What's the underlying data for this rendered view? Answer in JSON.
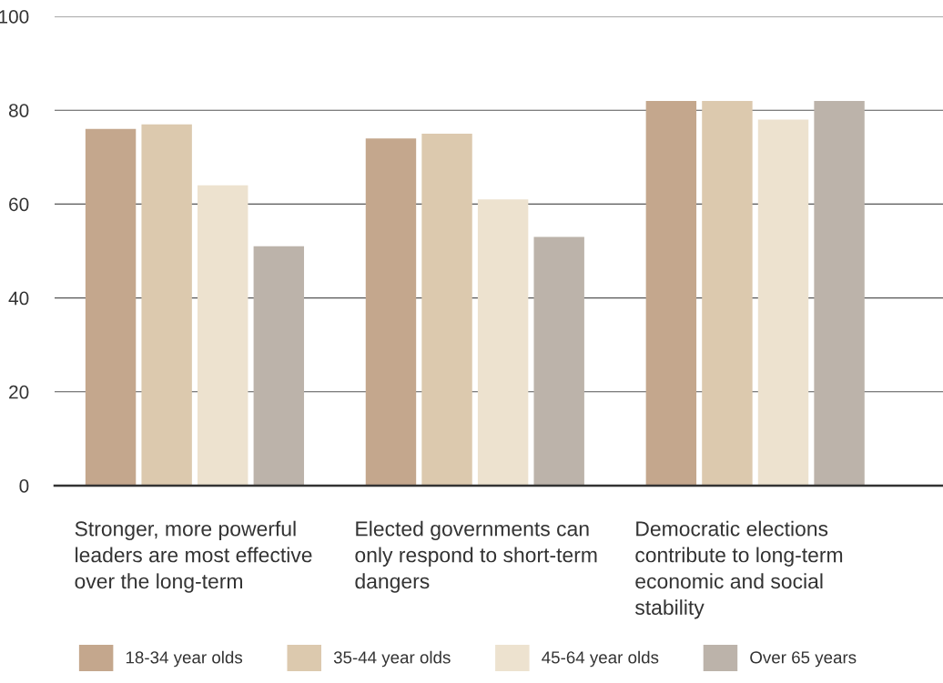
{
  "chart_data": {
    "type": "bar",
    "categories": [
      "Stronger, more powerful leaders are most effective over the long-term",
      "Elected governments can only respond to short-term dangers",
      "Democratic elections contribute to long-term economic and social stability"
    ],
    "series": [
      {
        "name": "18-34 year olds",
        "color": "#c4a78d",
        "values": [
          76,
          74,
          82
        ]
      },
      {
        "name": "35-44 year olds",
        "color": "#dcc9ae",
        "values": [
          77,
          75,
          82
        ]
      },
      {
        "name": "45-64 year olds",
        "color": "#ede2cf",
        "values": [
          64,
          61,
          78
        ]
      },
      {
        "name": "Over 65 years",
        "color": "#bcb3aa",
        "values": [
          51,
          53,
          82
        ]
      }
    ],
    "ylim": [
      0,
      100
    ],
    "yticks": [
      0,
      20,
      40,
      60,
      80,
      100
    ],
    "grid": "y",
    "legend": "bottom"
  }
}
